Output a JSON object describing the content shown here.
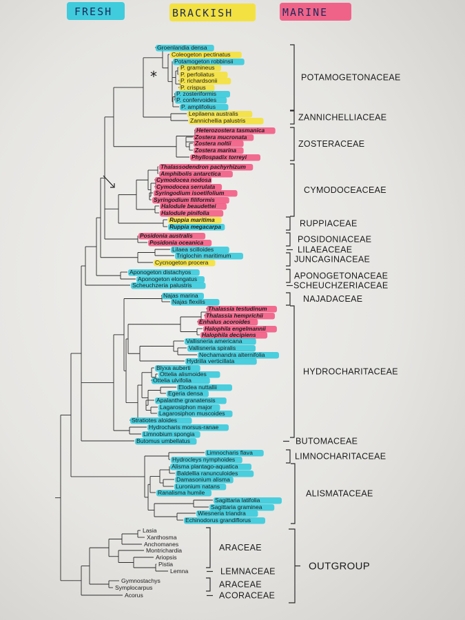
{
  "legend": [
    {
      "label": "FRESH",
      "color": "#2ec9dc"
    },
    {
      "label": "BRACKISH",
      "color": "#f4e030"
    },
    {
      "label": "MARINE",
      "color": "#f2557f"
    }
  ],
  "marks": {
    "asterisk": "*"
  },
  "leaves": [
    {
      "name": "Groenlandia densa",
      "hl": "#2ec9dc"
    },
    {
      "name": "Coleogeton pectinatus",
      "hl": "#f4e030"
    },
    {
      "name": "Potamogeton robbinsii",
      "hl": "#2ec9dc"
    },
    {
      "name": "P. gramineus",
      "hl": "#f4e030"
    },
    {
      "name": "P. perfoliatus",
      "hl": "#f4e030"
    },
    {
      "name": "P. richardsonii",
      "hl": "#f4e030"
    },
    {
      "name": "P. crispus",
      "hl": "#f4e030"
    },
    {
      "name": "P. zosteriformis",
      "hl": "#2ec9dc"
    },
    {
      "name": "P. confervoides",
      "hl": "#2ec9dc"
    },
    {
      "name": "P. amplifolius",
      "hl": "#2ec9dc"
    },
    {
      "name": "Lepilaena australis",
      "hl": "#f4e030"
    },
    {
      "name": "Zannichellia palustris",
      "hl": "#f4e030"
    },
    {
      "name": "Heterozostera tasmanica",
      "hl": "#f2557f",
      "it": true
    },
    {
      "name": "Zostera mucronata",
      "hl": "#f2557f",
      "it": true
    },
    {
      "name": "Zostera noltii",
      "hl": "#f2557f",
      "it": true
    },
    {
      "name": "Zostera marina",
      "hl": "#f2557f",
      "it": true
    },
    {
      "name": "Phyllospadix torreyi",
      "hl": "#f2557f",
      "it": true
    },
    {
      "name": "Thalassodendron pachyrhizum",
      "hl": "#f2557f",
      "it": true
    },
    {
      "name": "Amphibolis antarctica",
      "hl": "#f2557f",
      "it": true
    },
    {
      "name": "Cymodocea nodosa",
      "hl": "#f2557f",
      "it": true
    },
    {
      "name": "Cymodocea serrulata",
      "hl": "#f2557f",
      "it": true
    },
    {
      "name": "Syringodium isoetifolium",
      "hl": "#f2557f",
      "it": true
    },
    {
      "name": "Syringodium filiformis",
      "hl": "#f2557f",
      "it": true
    },
    {
      "name": "Halodule beaudettei",
      "hl": "#f2557f",
      "it": true
    },
    {
      "name": "Halodule pinifolia",
      "hl": "#f2557f",
      "it": true
    },
    {
      "name": "Ruppia maritima",
      "hl": "#f4e030",
      "it": true
    },
    {
      "name": "Ruppia megacarpa",
      "hl": "#2ec9dc",
      "it": true
    },
    {
      "name": "Posidonia australis",
      "hl": "#f2557f",
      "it": true
    },
    {
      "name": "Posidonia oceanica",
      "hl": "#f2557f",
      "it": true
    },
    {
      "name": "Lilaea scilloides",
      "hl": "#2ec9dc"
    },
    {
      "name": "Triglochin maritimum",
      "hl": "#2ec9dc"
    },
    {
      "name": "Cycnogeton procera",
      "hl": "#f4e030"
    },
    {
      "name": "Aponogeton distachyos",
      "hl": "#2ec9dc"
    },
    {
      "name": "Aponogeton elongatus",
      "hl": "#2ec9dc"
    },
    {
      "name": "Scheuchzeria palustris",
      "hl": "#2ec9dc"
    },
    {
      "name": "Najas marina",
      "hl": "#2ec9dc"
    },
    {
      "name": "Najas flexilis",
      "hl": "#2ec9dc"
    },
    {
      "name": "Thalassia testudinum",
      "hl": "#f2557f",
      "it": true
    },
    {
      "name": "Thalassia hemprichii",
      "hl": "#f2557f",
      "it": true
    },
    {
      "name": "Enhalus acoroides",
      "hl": "#f2557f",
      "it": true
    },
    {
      "name": "Halophila engelmannii",
      "hl": "#f2557f",
      "it": true
    },
    {
      "name": "Halophila decipiens",
      "hl": "#f2557f",
      "it": true
    },
    {
      "name": "Vallisneria americana",
      "hl": "#2ec9dc"
    },
    {
      "name": "Vallisneria spiralis",
      "hl": "#2ec9dc"
    },
    {
      "name": "Nechamandra alternifolia",
      "hl": "#2ec9dc"
    },
    {
      "name": "Hydrilla verticillata",
      "hl": "#2ec9dc"
    },
    {
      "name": "Blyxa auberti",
      "hl": "#2ec9dc"
    },
    {
      "name": "Ottelia alismoides",
      "hl": "#2ec9dc"
    },
    {
      "name": "Ottelia ulvifolia",
      "hl": "#2ec9dc"
    },
    {
      "name": "Elodea nuttallii",
      "hl": "#2ec9dc"
    },
    {
      "name": "Egeria densa",
      "hl": "#2ec9dc"
    },
    {
      "name": "Apalanthe granatensis",
      "hl": "#2ec9dc"
    },
    {
      "name": "Lagarosiphon major",
      "hl": "#2ec9dc"
    },
    {
      "name": "Lagarosiphon muscoides",
      "hl": "#2ec9dc"
    },
    {
      "name": "Stratiotes aloides",
      "hl": "#2ec9dc"
    },
    {
      "name": "Hydrocharis morsus-ranae",
      "hl": "#2ec9dc"
    },
    {
      "name": "Limnobium spongia",
      "hl": "#2ec9dc"
    },
    {
      "name": "Butomus umbellatus",
      "hl": "#2ec9dc"
    },
    {
      "name": "Limnocharis flava",
      "hl": "#2ec9dc"
    },
    {
      "name": "Hydrocleys nymphoides",
      "hl": "#2ec9dc"
    },
    {
      "name": "Alisma plantago-aquatica",
      "hl": "#2ec9dc"
    },
    {
      "name": "Baldellia ranunculoides",
      "hl": "#2ec9dc"
    },
    {
      "name": "Damasonium alisma",
      "hl": "#2ec9dc"
    },
    {
      "name": "Luronium natans",
      "hl": "#2ec9dc"
    },
    {
      "name": "Ranalisma humile",
      "hl": "#2ec9dc"
    },
    {
      "name": "Sagittaria latifolia",
      "hl": "#2ec9dc"
    },
    {
      "name": "Sagittaria graminea",
      "hl": "#2ec9dc"
    },
    {
      "name": "Wiesneria triandra",
      "hl": "#2ec9dc"
    },
    {
      "name": "Echinodorus grandiflorus",
      "hl": "#2ec9dc"
    },
    {
      "name": "Lasia",
      "hl": ""
    },
    {
      "name": "Xanthosma",
      "hl": ""
    },
    {
      "name": "Anchomanes",
      "hl": ""
    },
    {
      "name": "Montrichardia",
      "hl": ""
    },
    {
      "name": "Ariopsis",
      "hl": ""
    },
    {
      "name": "Pistia",
      "hl": ""
    },
    {
      "name": "Lemna",
      "hl": ""
    },
    {
      "name": "Gymnostachys",
      "hl": ""
    },
    {
      "name": "Symplocarpus",
      "hl": ""
    },
    {
      "name": "Acorus",
      "hl": ""
    }
  ],
  "families": [
    {
      "label": "POTAMOGETONACEAE",
      "from": 0,
      "to": 9
    },
    {
      "label": "ZANNICHELLIACEAE",
      "from": 10,
      "to": 11
    },
    {
      "label": "ZOSTERACEAE",
      "from": 12,
      "to": 16
    },
    {
      "label": "CYMODOCEACEAE",
      "from": 17,
      "to": 24
    },
    {
      "label": "RUPPIACEAE",
      "from": 25,
      "to": 26
    },
    {
      "label": "POSIDONIACEAE",
      "from": 27,
      "to": 28
    },
    {
      "label": "LILAEACEAE",
      "from": 29,
      "to": 29
    },
    {
      "label": "JUNCAGINACEAE",
      "from": 30,
      "to": 31
    },
    {
      "label": "APONOGETONACEAE",
      "from": 32,
      "to": 33
    },
    {
      "label": "SCHEUCHZERIACEAE",
      "from": 34,
      "to": 34
    },
    {
      "label": "NAJADACEAE",
      "from": 35,
      "to": 36
    },
    {
      "label": "HYDROCHARITACEAE",
      "from": 37,
      "to": 56
    },
    {
      "label": "BUTOMACEAE",
      "from": 57,
      "to": 57
    },
    {
      "label": "LIMNOCHARITACEAE",
      "from": 58,
      "to": 59
    },
    {
      "label": "ALISMATACEAE",
      "from": 60,
      "to": 68
    },
    {
      "label": "ARACEAE",
      "from": 69,
      "to": 74
    },
    {
      "label": "LEMNACEAE",
      "from": 75,
      "to": 75
    },
    {
      "label": "ARACEAE",
      "from": 76,
      "to": 77
    },
    {
      "label": "ACORACEAE",
      "from": 78,
      "to": 78
    }
  ],
  "outgroup": {
    "label": "OUTGROUP",
    "from": 69,
    "to": 78
  }
}
